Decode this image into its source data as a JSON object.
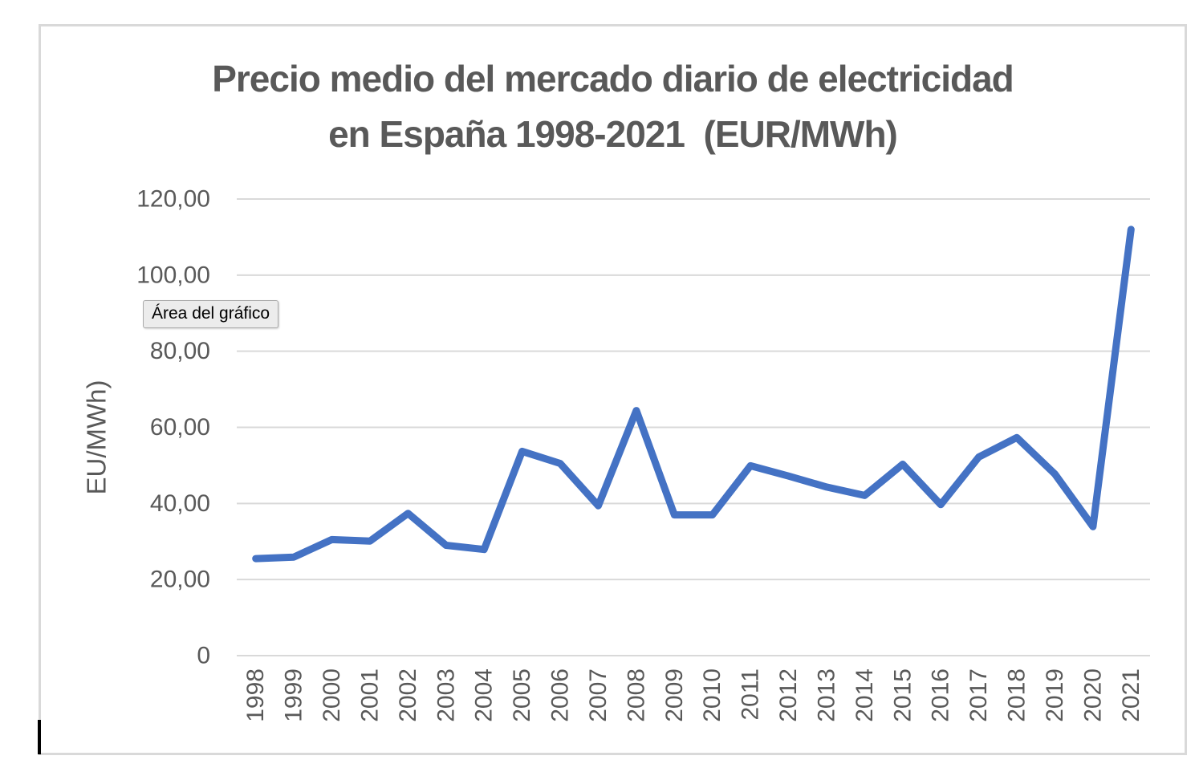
{
  "tooltip": {
    "label": "Área del gráfico"
  },
  "colors": {
    "line": "#4472C4",
    "grid": "#D9D9D9",
    "axis_text": "#595959",
    "title_text": "#595959",
    "frame_border": "#D9D9D9",
    "tooltip_bg": "#ECECEC",
    "tooltip_border": "#ABABAB"
  },
  "chart_data": {
    "type": "line",
    "title": "Precio medio del mercado diario de electricidad en España 1998-2021  (EUR/MWh)",
    "title_line1": "Precio medio del mercado diario de electricidad",
    "title_line2": "en España 1998-2021  (EUR/MWh)",
    "xlabel": "",
    "ylabel": "EU/MWh)",
    "categories": [
      "1998",
      "1999",
      "2000",
      "2001",
      "2002",
      "2003",
      "2004",
      "2005",
      "2006",
      "2007",
      "2008",
      "2009",
      "2010",
      "2011",
      "2012",
      "2013",
      "2014",
      "2015",
      "2016",
      "2017",
      "2018",
      "2019",
      "2020",
      "2021"
    ],
    "values": [
      25.5,
      25.9,
      30.5,
      30.1,
      37.4,
      29.0,
      27.9,
      53.7,
      50.5,
      39.4,
      64.4,
      37.0,
      37.0,
      49.9,
      47.2,
      44.3,
      42.1,
      50.3,
      39.7,
      52.2,
      57.3,
      47.7,
      33.9,
      112.0
    ],
    "y_tick_values": [
      0,
      20,
      40,
      60,
      80,
      100,
      120
    ],
    "y_tick_labels": [
      "0",
      "20,00",
      "40,00",
      "60,00",
      "80,00",
      "100,00",
      "120,00"
    ],
    "ylim": [
      0,
      120
    ],
    "grid": true,
    "legend": "none"
  }
}
